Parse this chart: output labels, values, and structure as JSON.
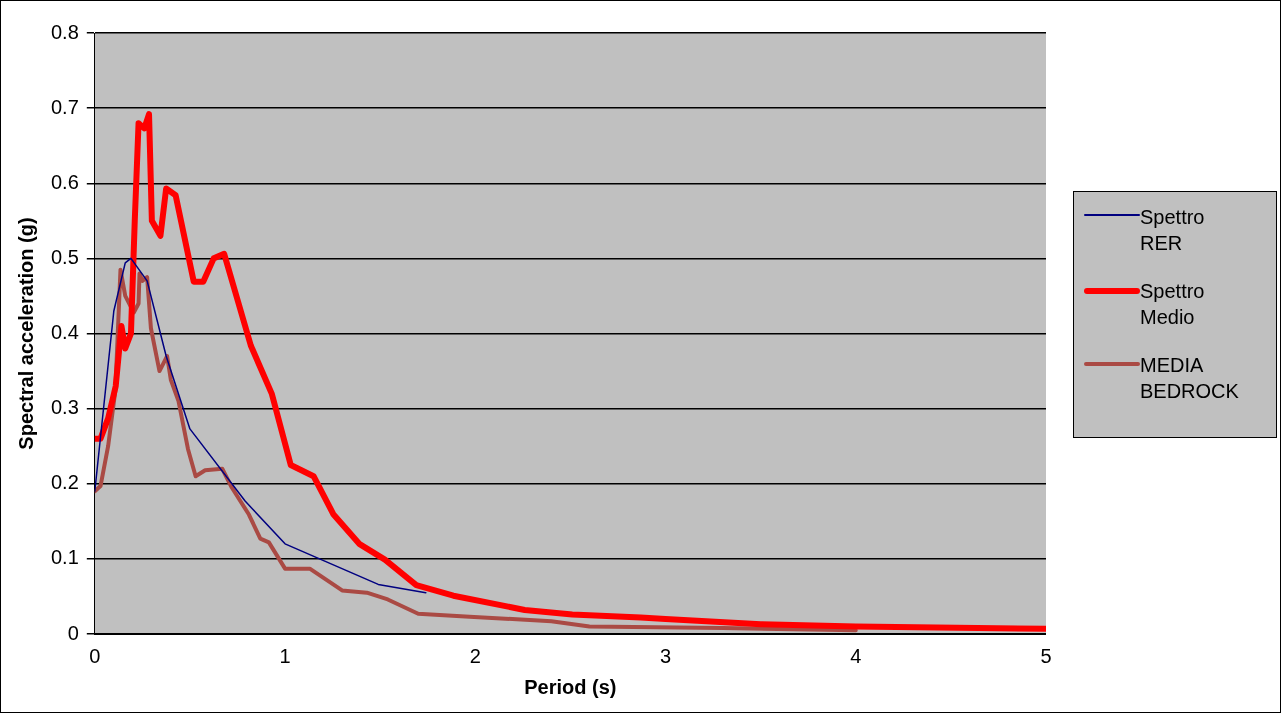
{
  "chart_data": {
    "type": "line",
    "xlabel": "Period (s)",
    "ylabel": "Spectral acceleration (g)",
    "xlim": [
      0,
      5
    ],
    "xticks": [
      0,
      1,
      2,
      3,
      4,
      5
    ],
    "ylim": [
      0,
      0.8
    ],
    "yticks": [
      0,
      0.1,
      0.2,
      0.3,
      0.4,
      0.5,
      0.6,
      0.7,
      0.8
    ],
    "grid": "y",
    "legend": "right",
    "marker": "none",
    "series": [
      {
        "name": "Spettro RER",
        "color": "#000080",
        "x": [
          0,
          0.1,
          0.16,
          0.19,
          0.275,
          0.375,
          0.5,
          0.79,
          1.0,
          1.49,
          1.74
        ],
        "values": [
          0.19,
          0.43,
          0.494,
          0.5,
          0.47,
          0.37,
          0.273,
          0.177,
          0.12,
          0.066,
          0.055
        ]
      },
      {
        "name": "Spettro Medio",
        "color": "#ff0000",
        "x": [
          0,
          0.03,
          0.07,
          0.11,
          0.14,
          0.16,
          0.19,
          0.21,
          0.23,
          0.26,
          0.285,
          0.3,
          0.345,
          0.375,
          0.425,
          0.52,
          0.57,
          0.625,
          0.68,
          0.82,
          0.93,
          1.03,
          1.15,
          1.255,
          1.39,
          1.525,
          1.69,
          1.885,
          2.26,
          2.51,
          2.87,
          3.0,
          3.5,
          4.0,
          5.0
        ],
        "values": [
          0.26,
          0.26,
          0.287,
          0.33,
          0.41,
          0.38,
          0.4,
          0.55,
          0.68,
          0.673,
          0.692,
          0.55,
          0.53,
          0.593,
          0.584,
          0.469,
          0.469,
          0.5,
          0.506,
          0.384,
          0.32,
          0.225,
          0.21,
          0.159,
          0.12,
          0.099,
          0.065,
          0.051,
          0.032,
          0.026,
          0.022,
          0.02,
          0.013,
          0.01,
          0.007
        ]
      },
      {
        "name": "MEDIA BEDROCK",
        "color": "#aa4a44",
        "x": [
          0,
          0.03,
          0.07,
          0.108,
          0.135,
          0.16,
          0.205,
          0.23,
          0.235,
          0.25,
          0.275,
          0.295,
          0.34,
          0.38,
          0.4,
          0.44,
          0.49,
          0.53,
          0.58,
          0.67,
          0.72,
          0.81,
          0.87,
          0.915,
          1.0,
          1.13,
          1.3,
          1.43,
          1.54,
          1.7,
          1.97,
          2.4,
          2.6,
          3.3,
          4.0
        ],
        "values": [
          0.19,
          0.197,
          0.25,
          0.324,
          0.485,
          0.45,
          0.428,
          0.44,
          0.48,
          0.47,
          0.475,
          0.407,
          0.35,
          0.37,
          0.338,
          0.31,
          0.246,
          0.21,
          0.218,
          0.22,
          0.195,
          0.159,
          0.127,
          0.122,
          0.087,
          0.087,
          0.058,
          0.055,
          0.046,
          0.027,
          0.023,
          0.017,
          0.01,
          0.008,
          0.005
        ]
      }
    ]
  }
}
